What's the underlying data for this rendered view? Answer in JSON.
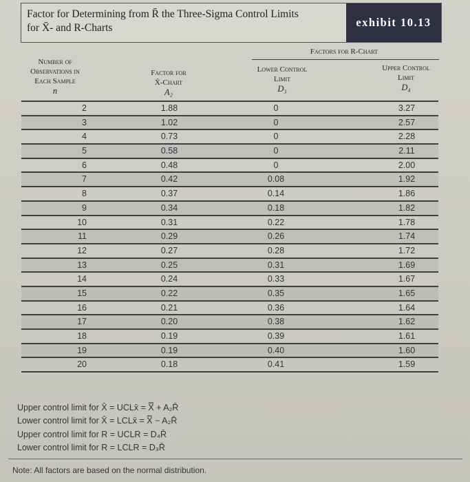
{
  "header": {
    "title_line1": "Factor for Determining from R̄ the Three-Sigma Control Limits",
    "title_line2": "for X̄- and R-Charts",
    "exhibit_label": "exhibit 10.13"
  },
  "columns": {
    "group_label": "Factors for R-Chart",
    "n_line1": "Number of",
    "n_line2": "Observations in",
    "n_line3": "Each Sample",
    "n_symbol": "n",
    "a2_line1": "Factor for",
    "a2_line2": "X̄-Chart",
    "a2_symbol": "A₂",
    "d3_line1": "Lower Control",
    "d3_line2": "Limit",
    "d3_symbol": "D₃",
    "d4_line1": "Upper Control",
    "d4_line2": "Limit",
    "d4_symbol": "D₄"
  },
  "table": {
    "rows": [
      {
        "n": "2",
        "a2": "1.88",
        "d3": "0",
        "d4": "3.27"
      },
      {
        "n": "3",
        "a2": "1.02",
        "d3": "0",
        "d4": "2.57"
      },
      {
        "n": "4",
        "a2": "0.73",
        "d3": "0",
        "d4": "2.28"
      },
      {
        "n": "5",
        "a2": "0.58",
        "d3": "0",
        "d4": "2.11"
      },
      {
        "n": "6",
        "a2": "0.48",
        "d3": "0",
        "d4": "2.00"
      },
      {
        "n": "7",
        "a2": "0.42",
        "d3": "0.08",
        "d4": "1.92"
      },
      {
        "n": "8",
        "a2": "0.37",
        "d3": "0.14",
        "d4": "1.86"
      },
      {
        "n": "9",
        "a2": "0.34",
        "d3": "0.18",
        "d4": "1.82"
      },
      {
        "n": "10",
        "a2": "0.31",
        "d3": "0.22",
        "d4": "1.78"
      },
      {
        "n": "11",
        "a2": "0.29",
        "d3": "0.26",
        "d4": "1.74"
      },
      {
        "n": "12",
        "a2": "0.27",
        "d3": "0.28",
        "d4": "1.72"
      },
      {
        "n": "13",
        "a2": "0.25",
        "d3": "0.31",
        "d4": "1.69"
      },
      {
        "n": "14",
        "a2": "0.24",
        "d3": "0.33",
        "d4": "1.67"
      },
      {
        "n": "15",
        "a2": "0.22",
        "d3": "0.35",
        "d4": "1.65"
      },
      {
        "n": "16",
        "a2": "0.21",
        "d3": "0.36",
        "d4": "1.64"
      },
      {
        "n": "17",
        "a2": "0.20",
        "d3": "0.38",
        "d4": "1.62"
      },
      {
        "n": "18",
        "a2": "0.19",
        "d3": "0.39",
        "d4": "1.61"
      },
      {
        "n": "19",
        "a2": "0.19",
        "d3": "0.40",
        "d4": "1.60"
      },
      {
        "n": "20",
        "a2": "0.18",
        "d3": "0.41",
        "d4": "1.59"
      }
    ]
  },
  "formulas": {
    "ucl_x": "Upper control limit for X̄ = UCLx̄ = X̿ + A₂R̄",
    "lcl_x": "Lower control limit for X̄ = LCLx̄ = X̿ − A₂R̄",
    "ucl_r": "Upper control limit for R = UCLR = D₄R̄",
    "lcl_r": "Lower control limit for R = LCLR = D₃R̄"
  },
  "note": "Note: All factors are based on the normal distribution."
}
